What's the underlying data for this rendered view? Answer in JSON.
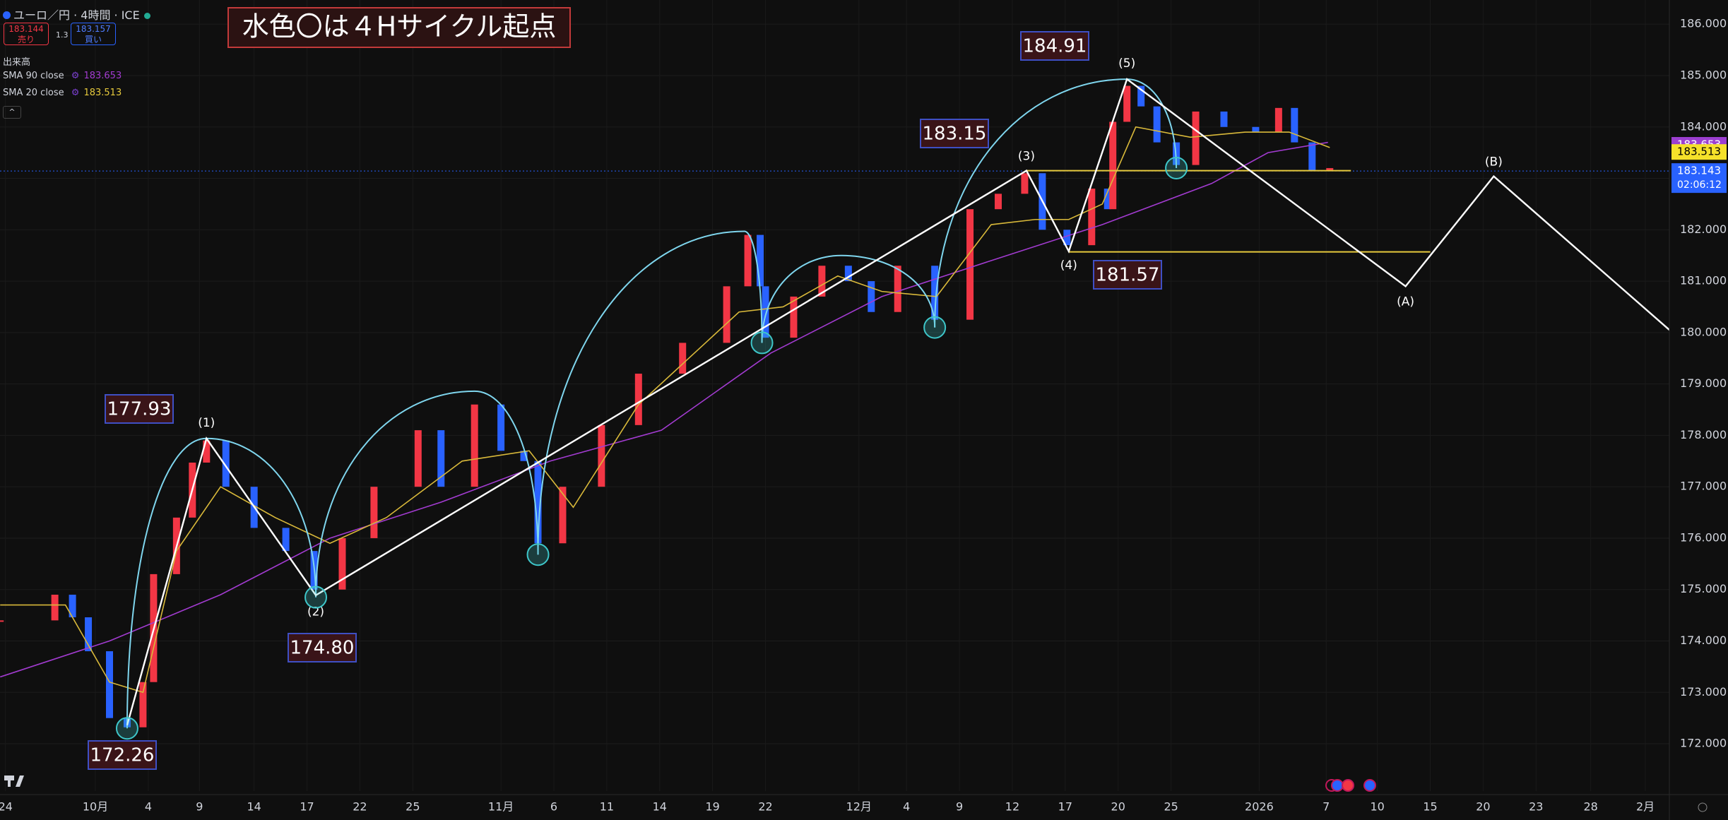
{
  "header": {
    "symbol": "ユーロ／円 · 4時間 · ICE",
    "sell_price": "183.144",
    "sell_label": "売り",
    "spread": "1.3",
    "buy_price": "183.157",
    "buy_label": "買い",
    "volume": "出来高",
    "indicators": [
      {
        "name": "SMA 90 close",
        "value": "183.653"
      },
      {
        "name": "SMA 20 close",
        "value": "183.513"
      }
    ]
  },
  "chart_data": {
    "type": "candlestick",
    "title": "水色〇は４Hサイクル起点",
    "xlim": [
      -0.31,
      94.36
    ],
    "ylim": [
      171.08,
      186.47
    ],
    "grid": true,
    "xticks": [
      {
        "value": 0,
        "label": "24"
      },
      {
        "value": 5.1,
        "label": "10月"
      },
      {
        "value": 8.1,
        "label": "4"
      },
      {
        "value": 11,
        "label": "9"
      },
      {
        "value": 14.1,
        "label": "14"
      },
      {
        "value": 17.1,
        "label": "17"
      },
      {
        "value": 20.1,
        "label": "22"
      },
      {
        "value": 23.1,
        "label": "25"
      },
      {
        "value": 28.1,
        "label": "11月"
      },
      {
        "value": 31.1,
        "label": "6"
      },
      {
        "value": 34.1,
        "label": "11"
      },
      {
        "value": 37.1,
        "label": "14"
      },
      {
        "value": 40.1,
        "label": "19"
      },
      {
        "value": 43.1,
        "label": "22"
      },
      {
        "value": 48.4,
        "label": "12月"
      },
      {
        "value": 51.1,
        "label": "4"
      },
      {
        "value": 54.1,
        "label": "9"
      },
      {
        "value": 57.1,
        "label": "12"
      },
      {
        "value": 60.1,
        "label": "17"
      },
      {
        "value": 63.1,
        "label": "20"
      },
      {
        "value": 66.1,
        "label": "25"
      },
      {
        "value": 71.1,
        "label": "2026"
      },
      {
        "value": 74.9,
        "label": "7"
      },
      {
        "value": 77.8,
        "label": "10"
      },
      {
        "value": 80.8,
        "label": "15"
      },
      {
        "value": 83.8,
        "label": "20"
      },
      {
        "value": 86.8,
        "label": "23"
      },
      {
        "value": 89.9,
        "label": "28"
      },
      {
        "value": 93,
        "label": "2月"
      }
    ],
    "yticks": [
      {
        "value": 172,
        "label": "172.000"
      },
      {
        "value": 173,
        "label": "173.000"
      },
      {
        "value": 174,
        "label": "174.000"
      },
      {
        "value": 175,
        "label": "175.000"
      },
      {
        "value": 176,
        "label": "176.000"
      },
      {
        "value": 177,
        "label": "177.000"
      },
      {
        "value": 178,
        "label": "178.000"
      },
      {
        "value": 179,
        "label": "179.000"
      },
      {
        "value": 180,
        "label": "180.000"
      },
      {
        "value": 181,
        "label": "181.000"
      },
      {
        "value": 182,
        "label": "182.000"
      },
      {
        "value": 183,
        "label": "183.000"
      },
      {
        "value": 184,
        "label": "184.000"
      },
      {
        "value": 185,
        "label": "185.000"
      },
      {
        "value": 186,
        "label": "186.000"
      }
    ],
    "price": {
      "up_color": "#f23645",
      "down_color": "#2962ff",
      "x": [
        -0.3,
        2.8,
        3.8,
        4.7,
        5.9,
        6.9,
        7.8,
        8.4,
        9.7,
        10.6,
        11.4,
        12.5,
        14.1,
        15.9,
        17.5,
        19.1,
        20.9,
        23.4,
        24.7,
        26.6,
        28.1,
        29.4,
        30.2,
        31.6,
        33.8,
        35.9,
        38.4,
        40.9,
        42.1,
        42.8,
        43.1,
        44.7,
        46.3,
        47.8,
        49.1,
        50.6,
        52.7,
        54.7,
        56.3,
        57.8,
        58.8,
        60.2,
        61.6,
        62.5,
        62.8,
        63.6,
        64.4,
        65.3,
        66.4,
        67.5,
        69.1,
        70.9,
        72.2,
        73.1,
        74.1,
        75.1
      ],
      "values": [
        174.4,
        174.9,
        174.46,
        173.8,
        172.5,
        172.32,
        173.2,
        175.3,
        176.4,
        177.47,
        177.9,
        177.0,
        176.2,
        175.75,
        175.0,
        176.0,
        177.0,
        178.1,
        177.0,
        178.6,
        177.7,
        177.5,
        175.9,
        177.0,
        178.2,
        179.2,
        179.8,
        180.9,
        181.9,
        180.9,
        179.9,
        180.7,
        181.3,
        181.0,
        180.4,
        181.3,
        180.25,
        182.4,
        182.7,
        183.1,
        182.0,
        181.7,
        182.8,
        182.4,
        184.1,
        184.8,
        184.4,
        183.7,
        183.26,
        184.3,
        184.0,
        183.9,
        184.37,
        183.7,
        183.15,
        183.2
      ]
    },
    "series": [
      {
        "name": "SMA 90 close",
        "color": "#a23bd0",
        "x": [
          -0.3,
          5.9,
          12.2,
          18.4,
          24.7,
          30.9,
          37.2,
          43.4,
          49.7,
          55.9,
          62.2,
          68.4,
          71.6,
          75.0
        ],
        "values": [
          173.3,
          174.0,
          174.9,
          176.0,
          176.7,
          177.5,
          178.1,
          179.6,
          180.7,
          181.4,
          182.1,
          182.9,
          183.5,
          183.7
        ]
      },
      {
        "name": "SMA 20 close",
        "color": "#d9b93a",
        "x": [
          -0.3,
          3.4,
          5.9,
          7.8,
          9.7,
          12.2,
          15.3,
          18.4,
          21.6,
          25.9,
          29.7,
          32.2,
          35.9,
          39.7,
          41.6,
          44.1,
          47.2,
          49.7,
          52.8,
          55.9,
          58.4,
          60.3,
          62.2,
          64.1,
          67.2,
          70.3,
          72.8,
          75.1
        ],
        "values": [
          174.7,
          174.7,
          173.2,
          173.0,
          175.75,
          177.0,
          176.4,
          175.9,
          176.4,
          177.5,
          177.7,
          176.6,
          178.6,
          179.8,
          180.4,
          180.5,
          181.1,
          180.8,
          180.7,
          182.1,
          182.2,
          182.2,
          182.5,
          184.0,
          183.8,
          183.9,
          183.9,
          183.6
        ]
      }
    ],
    "wave": {
      "color": "#ffffff",
      "x": [
        6.9,
        11.4,
        17.6,
        57.9,
        60.3,
        63.6,
        79.4,
        84.4,
        94.4
      ],
      "values": [
        172.36,
        177.94,
        174.89,
        183.15,
        181.58,
        184.93,
        180.9,
        183.04,
        180.04
      ],
      "labels": [
        null,
        "(1)",
        "(2)",
        "(3)",
        "(4)",
        "(5)",
        "(A)",
        "(B)",
        null
      ]
    },
    "cycle_starts": {
      "color": "#3ec6c9",
      "x": [
        6.9,
        17.6,
        30.2,
        42.9,
        52.7,
        66.4
      ],
      "values": [
        172.3,
        174.85,
        175.68,
        179.8,
        180.1,
        183.2
      ]
    },
    "cycle_peaks": {
      "x": [
        11.4,
        26.6,
        41.9,
        47.4,
        63.6
      ],
      "values": [
        177.94,
        178.86,
        181.97,
        181.5,
        184.93
      ]
    },
    "levels": {
      "color": "#e6c93c",
      "values": [
        183.15,
        181.57
      ],
      "x_start": [
        57.9,
        60.3
      ],
      "x_end": [
        76.3,
        80.8
      ]
    },
    "price_boxes": {
      "values": [
        172.26,
        177.93,
        174.8,
        183.15,
        184.91,
        181.57
      ],
      "value_labels": [
        "172.26",
        "177.93",
        "174.80",
        "183.15",
        "184.91",
        "181.57"
      ]
    },
    "price_tags": {
      "values": [
        183.653,
        183.513,
        183.143
      ],
      "colors": [
        "#9c3fd0",
        "#f5e12a",
        "#2962ff"
      ],
      "countdown": "02:06:12"
    }
  }
}
